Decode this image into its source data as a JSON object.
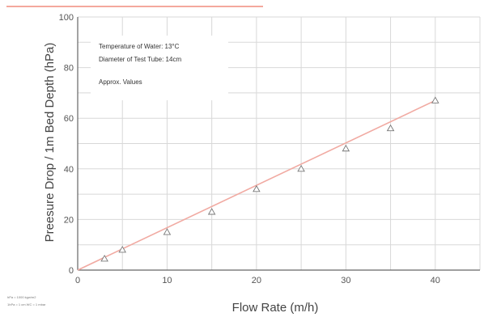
{
  "chart_data": {
    "type": "scatter",
    "xlabel": "Flow Rate (m/h)",
    "ylabel": "Preesure Drop / 1m Bed Depth (hPa)",
    "xlim": [
      0,
      45
    ],
    "ylim": [
      0,
      100
    ],
    "xticks": [
      0,
      10,
      20,
      30,
      40
    ],
    "yticks": [
      0,
      20,
      40,
      60,
      80,
      100
    ],
    "grid": true,
    "annotations": [
      "Temperature of Water: 13°C",
      "Diameter of Test Tube: 14cm",
      "Approx. Values"
    ],
    "footnotes": [
      "hPa = 1000 kgw/m2",
      "1hPa = 1 cm WC = 1 mbar"
    ],
    "series": [
      {
        "marker": "triangle",
        "x": [
          3,
          5,
          10,
          15,
          20,
          25,
          30,
          35,
          40
        ],
        "y": [
          4.5,
          8,
          15,
          23,
          32,
          40,
          48,
          56,
          67
        ]
      }
    ],
    "trendline": {
      "x": [
        0,
        40
      ],
      "y": [
        0,
        67
      ]
    },
    "colors": {
      "trendline": "#f1aaa2",
      "marker": "#777777",
      "grid": "#d8d8d8",
      "accent_bar": "#f4a89d"
    }
  }
}
